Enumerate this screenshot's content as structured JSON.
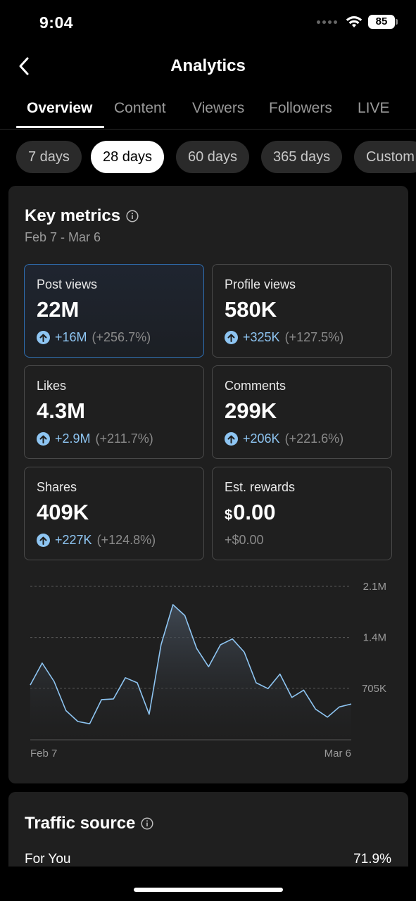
{
  "status_bar": {
    "time": "9:04",
    "battery": "85"
  },
  "header": {
    "title": "Analytics"
  },
  "tabs": [
    {
      "label": "Overview",
      "active": true
    },
    {
      "label": "Content"
    },
    {
      "label": "Viewers"
    },
    {
      "label": "Followers"
    },
    {
      "label": "LIVE"
    }
  ],
  "ranges": [
    {
      "label": "7 days"
    },
    {
      "label": "28 days",
      "active": true
    },
    {
      "label": "60 days"
    },
    {
      "label": "365 days"
    },
    {
      "label": "Custom"
    }
  ],
  "key_metrics": {
    "title": "Key metrics",
    "date_range": "Feb 7 - Mar 6",
    "metrics": [
      {
        "label": "Post views",
        "value": "22M",
        "delta": "+16M",
        "pct": "(+256.7%)",
        "selected": true
      },
      {
        "label": "Profile views",
        "value": "580K",
        "delta": "+325K",
        "pct": "(+127.5%)"
      },
      {
        "label": "Likes",
        "value": "4.3M",
        "delta": "+2.9M",
        "pct": "(+211.7%)"
      },
      {
        "label": "Comments",
        "value": "299K",
        "delta": "+206K",
        "pct": "(+221.6%)"
      },
      {
        "label": "Shares",
        "value": "409K",
        "delta": "+227K",
        "pct": "(+124.8%)"
      },
      {
        "label": "Est. rewards",
        "currency": "$",
        "value": "0.00",
        "change": "+$0.00"
      }
    ]
  },
  "chart_data": {
    "type": "area",
    "series": [
      {
        "values": [
          750000,
          1050000,
          800000,
          400000,
          250000,
          220000,
          550000,
          560000,
          850000,
          780000,
          350000,
          1300000,
          1850000,
          1700000,
          1250000,
          1000000,
          1300000,
          1380000,
          1200000,
          780000,
          700000,
          900000,
          580000,
          680000,
          420000,
          310000,
          450000,
          490000
        ]
      }
    ],
    "y_ticks": [
      "2.1M",
      "1.4M",
      "705K"
    ],
    "y_tick_values": [
      2100000,
      1400000,
      705000
    ],
    "ylim": [
      0,
      2100000
    ],
    "x_labels": [
      "Feb 7",
      "Mar 6"
    ],
    "color": "#8ec5f2",
    "grid": "dashed"
  },
  "traffic_source": {
    "title": "Traffic source",
    "rows": [
      {
        "label": "For You",
        "value": "71.9%"
      }
    ]
  },
  "colors": {
    "accent": "#8ec5f2",
    "selected_border": "#2f6fb3",
    "card_bg": "#1f1f1f"
  }
}
